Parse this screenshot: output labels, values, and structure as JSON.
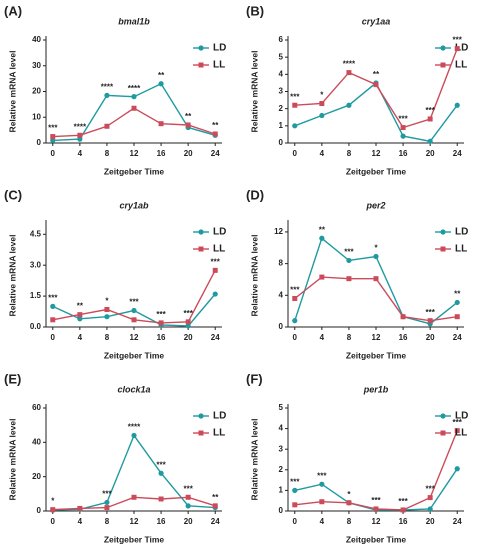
{
  "chart_data": [
    {
      "type": "line",
      "panel": "(A)",
      "title": "bmal1b",
      "xlabel": "Zeitgeber Time",
      "ylabel": "Relative mRNA level",
      "x": [
        0,
        4,
        8,
        12,
        16,
        20,
        24
      ],
      "xlim": [
        -1,
        25
      ],
      "xticks": [
        0,
        4,
        8,
        12,
        16,
        20,
        24
      ],
      "ylim": [
        0,
        40
      ],
      "yticks": [
        0,
        10,
        20,
        30,
        40
      ],
      "series": [
        {
          "name": "LD",
          "color": "#1f9aa0",
          "values": [
            1,
            1.5,
            18.5,
            18,
            23,
            6,
            3
          ]
        },
        {
          "name": "LL",
          "color": "#cc4b5a",
          "values": [
            2.5,
            3,
            6.5,
            13.5,
            7.5,
            7,
            3.5
          ]
        }
      ],
      "annotations": [
        {
          "x": 0,
          "text": "***"
        },
        {
          "x": 4,
          "text": "****"
        },
        {
          "x": 8,
          "text": "****"
        },
        {
          "x": 12,
          "text": "****"
        },
        {
          "x": 16,
          "text": "**"
        },
        {
          "x": 20,
          "text": "**"
        },
        {
          "x": 24,
          "text": "**"
        }
      ]
    },
    {
      "type": "line",
      "panel": "(B)",
      "title": "cry1aa",
      "xlabel": "Zeitgeber Time",
      "ylabel": "Relative mRNA level",
      "x": [
        0,
        4,
        8,
        12,
        16,
        20,
        24
      ],
      "xlim": [
        -1,
        25
      ],
      "xticks": [
        0,
        4,
        8,
        12,
        16,
        20,
        24
      ],
      "ylim": [
        0,
        6
      ],
      "yticks": [
        0,
        1,
        2,
        3,
        4,
        5,
        6
      ],
      "series": [
        {
          "name": "LD",
          "color": "#1f9aa0",
          "values": [
            1,
            1.6,
            2.2,
            3.5,
            0.4,
            0.1,
            2.2
          ]
        },
        {
          "name": "LL",
          "color": "#cc4b5a",
          "values": [
            2.2,
            2.3,
            4.1,
            3.4,
            0.9,
            1.4,
            5.5
          ]
        }
      ],
      "annotations": [
        {
          "x": 0,
          "text": "***"
        },
        {
          "x": 4,
          "text": "*"
        },
        {
          "x": 8,
          "text": "****"
        },
        {
          "x": 12,
          "text": "**"
        },
        {
          "x": 16,
          "text": "***"
        },
        {
          "x": 20,
          "text": "***"
        },
        {
          "x": 24,
          "text": "***"
        }
      ]
    },
    {
      "type": "line",
      "panel": "(C)",
      "title": "cry1ab",
      "xlabel": "Zeitgeber Time",
      "ylabel": "Relative mRNA level",
      "x": [
        0,
        4,
        8,
        12,
        16,
        20,
        24
      ],
      "xlim": [
        -1,
        25
      ],
      "xticks": [
        0,
        4,
        8,
        12,
        16,
        20,
        24
      ],
      "ylim": [
        0,
        5
      ],
      "yticks": [
        {
          "value": 0,
          "label": "0.0"
        },
        1.5,
        {
          "value": 3,
          "label": "3.0"
        },
        4.5
      ],
      "series": [
        {
          "name": "LD",
          "color": "#1f9aa0",
          "values": [
            1.0,
            0.4,
            0.5,
            0.8,
            0.1,
            0.05,
            1.6
          ]
        },
        {
          "name": "LL",
          "color": "#cc4b5a",
          "values": [
            0.35,
            0.6,
            0.85,
            0.35,
            0.2,
            0.25,
            2.75
          ]
        }
      ],
      "annotations": [
        {
          "x": 0,
          "text": "***"
        },
        {
          "x": 4,
          "text": "**"
        },
        {
          "x": 8,
          "text": "*"
        },
        {
          "x": 12,
          "text": "***"
        },
        {
          "x": 16,
          "text": "***"
        },
        {
          "x": 20,
          "text": "***"
        },
        {
          "x": 24,
          "text": "***"
        }
      ]
    },
    {
      "type": "line",
      "panel": "(D)",
      "title": "per2",
      "xlabel": "Zeitgeber Time",
      "ylabel": "Relative mRNA level",
      "x": [
        0,
        4,
        8,
        12,
        16,
        20,
        24
      ],
      "xlim": [
        -1,
        25
      ],
      "xticks": [
        0,
        4,
        8,
        12,
        16,
        20,
        24
      ],
      "ylim": [
        0,
        13
      ],
      "yticks": [
        0,
        4,
        8,
        12
      ],
      "series": [
        {
          "name": "LD",
          "color": "#1f9aa0",
          "values": [
            0.8,
            11.2,
            8.4,
            8.9,
            1.3,
            0.4,
            3.1
          ]
        },
        {
          "name": "LL",
          "color": "#cc4b5a",
          "values": [
            3.6,
            6.3,
            6.1,
            6.1,
            1.3,
            0.8,
            1.3
          ]
        }
      ],
      "annotations": [
        {
          "x": 0,
          "text": "***"
        },
        {
          "x": 4,
          "text": "**"
        },
        {
          "x": 8,
          "text": "***"
        },
        {
          "x": 12,
          "text": "*"
        },
        {
          "x": 20,
          "text": "***"
        },
        {
          "x": 24,
          "text": "**"
        }
      ]
    },
    {
      "type": "line",
      "panel": "(E)",
      "title": "clock1a",
      "xlabel": "Zeitgeber Time",
      "ylabel": "Relative mRNA level",
      "x": [
        0,
        4,
        8,
        12,
        16,
        20,
        24
      ],
      "xlim": [
        -1,
        25
      ],
      "xticks": [
        0,
        4,
        8,
        12,
        16,
        20,
        24
      ],
      "ylim": [
        0,
        60
      ],
      "yticks": [
        0,
        20,
        40,
        60
      ],
      "series": [
        {
          "name": "LD",
          "color": "#1f9aa0",
          "values": [
            0.5,
            1,
            5,
            44,
            22,
            3,
            2
          ]
        },
        {
          "name": "LL",
          "color": "#cc4b5a",
          "values": [
            0.8,
            1.5,
            2,
            8,
            7,
            8,
            3
          ]
        }
      ],
      "annotations": [
        {
          "x": 0,
          "text": "*"
        },
        {
          "x": 8,
          "text": "***"
        },
        {
          "x": 12,
          "text": "****"
        },
        {
          "x": 16,
          "text": "***"
        },
        {
          "x": 20,
          "text": "***"
        },
        {
          "x": 24,
          "text": "**"
        }
      ]
    },
    {
      "type": "line",
      "panel": "(F)",
      "title": "per1b",
      "xlabel": "Zeitgeber Time",
      "ylabel": "Relative mRNA level",
      "x": [
        0,
        4,
        8,
        12,
        16,
        20,
        24
      ],
      "xlim": [
        -1,
        25
      ],
      "xticks": [
        0,
        4,
        8,
        12,
        16,
        20,
        24
      ],
      "ylim": [
        0,
        5
      ],
      "yticks": [
        0,
        1,
        2,
        3,
        4,
        5
      ],
      "series": [
        {
          "name": "LD",
          "color": "#1f9aa0",
          "values": [
            1.0,
            1.3,
            0.4,
            0.05,
            0.05,
            0.1,
            2.05
          ]
        },
        {
          "name": "LL",
          "color": "#cc4b5a",
          "values": [
            0.3,
            0.45,
            0.4,
            0.1,
            0.05,
            0.65,
            3.9
          ]
        }
      ],
      "annotations": [
        {
          "x": 0,
          "text": "***"
        },
        {
          "x": 4,
          "text": "***"
        },
        {
          "x": 8,
          "text": "*"
        },
        {
          "x": 12,
          "text": "***"
        },
        {
          "x": 16,
          "text": "***"
        },
        {
          "x": 20,
          "text": "***"
        },
        {
          "x": 24,
          "text": "***"
        }
      ]
    }
  ]
}
